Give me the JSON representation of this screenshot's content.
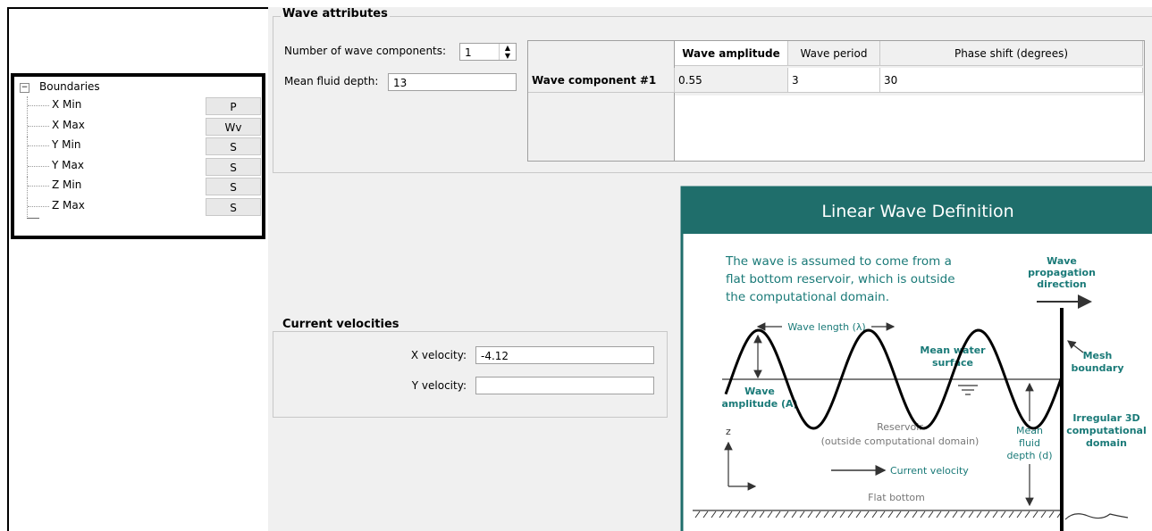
{
  "tree": {
    "root": "Boundaries",
    "items": [
      {
        "label": "X Min",
        "value": "P"
      },
      {
        "label": "X Max",
        "value": "Wv"
      },
      {
        "label": "Y Min",
        "value": "S"
      },
      {
        "label": "Y Max",
        "value": "S"
      },
      {
        "label": "Z Min",
        "value": "S"
      },
      {
        "label": "Z Max",
        "value": "S"
      }
    ]
  },
  "wave_attributes": {
    "title": "Wave attributes",
    "components_label": "Number of wave components:",
    "components": 1,
    "depth_label": "Mean fluid depth:",
    "depth": 13,
    "table": {
      "columns": [
        "Wave amplitude",
        "Wave period",
        "Phase shift (degrees)"
      ],
      "rows": [
        {
          "header": "Wave component #1",
          "cells": [
            0.55,
            3,
            30
          ]
        }
      ]
    }
  },
  "current_velocities": {
    "title": "Current velocities",
    "x_label": "X velocity:",
    "x_value": -4.12,
    "y_label": "Y velocity:"
  },
  "figure": {
    "title": "Linear Wave Definition",
    "intro": [
      "The wave is assumed to come from a",
      "flat bottom reservoir, which is outside",
      "the computational domain."
    ],
    "propagation": [
      "Wave",
      "propagation",
      "direction"
    ],
    "wave_length": "Wave length (λ)",
    "mean_surface": [
      "Mean water",
      "surface"
    ],
    "mesh_boundary": [
      "Mesh",
      "boundary"
    ],
    "amplitude": [
      "Wave",
      "amplitude (A)"
    ],
    "irregular": [
      "Irregular 3D",
      "computational",
      "domain"
    ],
    "reservoir": [
      "Reservoir",
      "(outside computational domain)"
    ],
    "depth": [
      "Mean",
      "fluid",
      "depth (d)"
    ],
    "z_axis": "z",
    "current": "Current velocity",
    "bottom": "Flat bottom"
  }
}
